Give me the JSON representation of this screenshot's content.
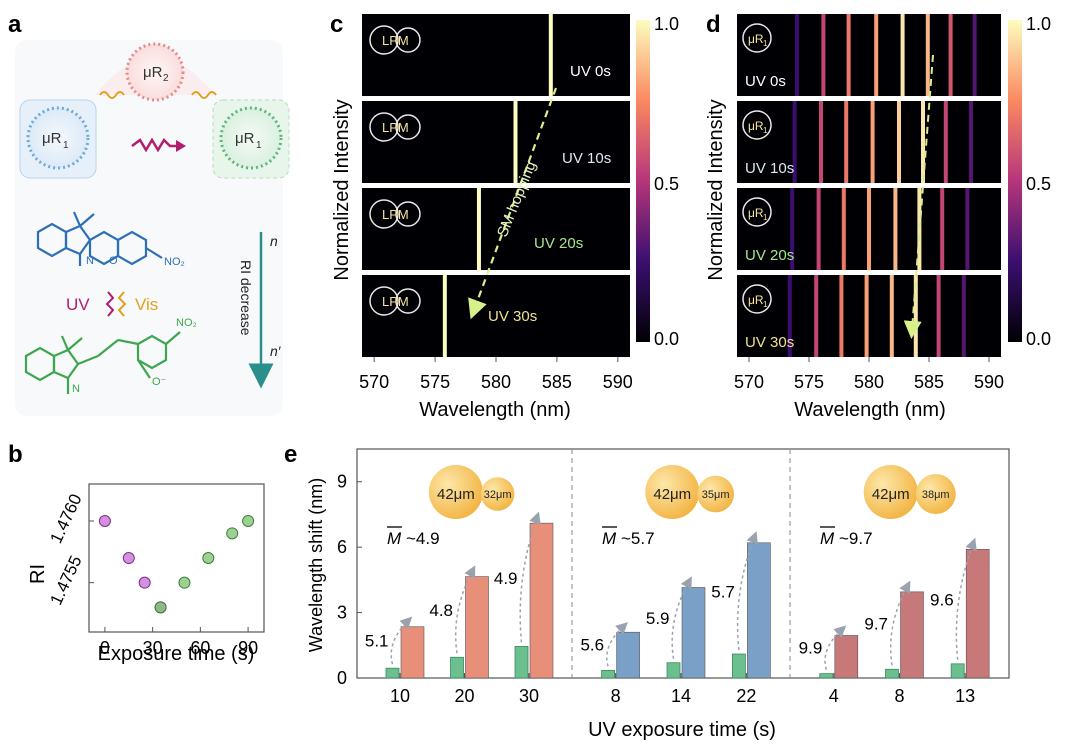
{
  "panels": {
    "a": {
      "letter": "a",
      "resonator_main": "μR",
      "resonator_main_sub": "1",
      "resonator_aux": "μR",
      "resonator_aux_sub": "2",
      "uv_label": "UV",
      "vis_label": "Vis",
      "ri_decrease_label": "RI decrease",
      "n_label": "n",
      "n_prime_label": "n′",
      "nitro_top": "NO₂",
      "nitro_bottom": "NO₂",
      "atom_N": "N",
      "atom_O": "O",
      "atom_N_plus": "N",
      "atom_O_minus": "O⁻",
      "colors": {
        "blue_resonator": "#6fa8d8",
        "red_resonator": "#e88a8a",
        "green_resonator": "#5cb57a",
        "uv": "#b01e6e",
        "vis": "#e0a21e",
        "ri_arrow": "#2a8f8a"
      }
    },
    "b": {
      "letter": "b",
      "ylabel": "RI",
      "xlabel": "Exposure time (s)",
      "xticks": [
        "0",
        "30",
        "60",
        "90"
      ],
      "yticks": [
        "1.4755",
        "1.4760"
      ]
    },
    "c": {
      "letter": "c",
      "ylabel": "Normalized Intensity",
      "xlabel": "Wavelength (nm)",
      "xticks": [
        "570",
        "575",
        "580",
        "585",
        "590"
      ],
      "cbar_ticks": [
        "1.0",
        "0.5",
        "0.0"
      ],
      "strips": [
        {
          "badge": "LPM",
          "uv_label": "UV 0s"
        },
        {
          "badge": "LPM",
          "uv_label": "UV 10s"
        },
        {
          "badge": "LPM",
          "uv_label": "UV 20s"
        },
        {
          "badge": "LPM",
          "uv_label": "UV 30s"
        }
      ],
      "arrow_label": "SM hopping"
    },
    "d": {
      "letter": "d",
      "ylabel": "Normalized Intensity",
      "xlabel": "Wavelength (nm)",
      "xticks": [
        "570",
        "575",
        "580",
        "585",
        "590"
      ],
      "cbar_ticks": [
        "1.0",
        "0.5",
        "0.0"
      ],
      "strips": [
        {
          "badge": "μR",
          "badge_sub": "1",
          "uv_label": "UV 0s"
        },
        {
          "badge": "μR",
          "badge_sub": "1",
          "uv_label": "UV 10s"
        },
        {
          "badge": "μR",
          "badge_sub": "1",
          "uv_label": "UV 20s"
        },
        {
          "badge": "μR",
          "badge_sub": "1",
          "uv_label": "UV 30s"
        }
      ]
    },
    "e": {
      "letter": "e",
      "ylabel": "Wavelength shift (nm)",
      "xlabel": "UV exposure time (s)",
      "yticks": [
        "0",
        "3",
        "6",
        "9"
      ],
      "groups": [
        {
          "big": "42μm",
          "small": "32μm",
          "m_bar": "M",
          "m_value": "~4.9",
          "xticks": [
            "10",
            "20",
            "30"
          ],
          "ratios": [
            "5.1",
            "4.8",
            "4.9"
          ]
        },
        {
          "big": "42μm",
          "small": "35μm",
          "m_bar": "M",
          "m_value": "~5.7",
          "xticks": [
            "8",
            "14",
            "22"
          ],
          "ratios": [
            "5.6",
            "5.9",
            "5.7"
          ]
        },
        {
          "big": "42μm",
          "small": "38μm",
          "m_bar": "M",
          "m_value": "~9.7",
          "xticks": [
            "4",
            "8",
            "13"
          ],
          "ratios": [
            "9.9",
            "9.7",
            "9.6"
          ]
        }
      ]
    }
  },
  "chart_data": [
    {
      "panel": "b",
      "type": "scatter",
      "xlabel": "Exposure time (s)",
      "ylabel": "RI",
      "xlim": [
        -10,
        100
      ],
      "ylim": [
        1.4751,
        1.4763
      ],
      "series": [
        {
          "color": "#c76ad6",
          "x": [
            0,
            15,
            25,
            35
          ],
          "y": [
            1.476,
            1.4757,
            1.4755,
            1.4753
          ]
        },
        {
          "color": "#7cc26f",
          "x": [
            35,
            50,
            65,
            80,
            90
          ],
          "y": [
            1.4753,
            1.4755,
            1.4757,
            1.4759,
            1.476
          ]
        }
      ]
    },
    {
      "panel": "c",
      "type": "heatmap",
      "xlabel": "Wavelength (nm)",
      "ylabel": "Normalized Intensity",
      "xlim": [
        569,
        591
      ],
      "color_range": [
        0,
        1
      ],
      "rows": [
        {
          "label": "UV 0s",
          "peaks": [
            [
              584.5,
              1.0
            ]
          ]
        },
        {
          "label": "UV 10s",
          "peaks": [
            [
              581.6,
              1.0
            ]
          ]
        },
        {
          "label": "UV 20s",
          "peaks": [
            [
              578.6,
              1.0
            ]
          ]
        },
        {
          "label": "UV 30s",
          "peaks": [
            [
              575.8,
              1.0
            ]
          ]
        }
      ]
    },
    {
      "panel": "d",
      "type": "heatmap",
      "xlabel": "Wavelength (nm)",
      "ylabel": "Normalized Intensity",
      "xlim": [
        569,
        591
      ],
      "color_range": [
        0,
        1
      ],
      "rows": [
        {
          "label": "UV 0s",
          "peaks": [
            [
              574,
              0.25
            ],
            [
              576.2,
              0.55
            ],
            [
              578.3,
              0.7
            ],
            [
              580.6,
              0.8
            ],
            [
              582.8,
              0.95
            ],
            [
              584.9,
              0.85
            ],
            [
              586.8,
              0.6
            ],
            [
              588.8,
              0.3
            ]
          ]
        },
        {
          "label": "UV 10s",
          "peaks": [
            [
              573.8,
              0.25
            ],
            [
              576,
              0.55
            ],
            [
              578.1,
              0.7
            ],
            [
              580.3,
              0.8
            ],
            [
              582.5,
              0.9
            ],
            [
              584.5,
              0.95
            ],
            [
              586.4,
              0.55
            ],
            [
              588.5,
              0.3
            ]
          ]
        },
        {
          "label": "UV 20s",
          "peaks": [
            [
              573.6,
              0.25
            ],
            [
              575.8,
              0.55
            ],
            [
              577.9,
              0.7
            ],
            [
              580,
              0.8
            ],
            [
              582.2,
              0.85
            ],
            [
              584.2,
              0.95
            ],
            [
              586.1,
              0.55
            ],
            [
              588.2,
              0.3
            ]
          ]
        },
        {
          "label": "UV 30s",
          "peaks": [
            [
              573.4,
              0.25
            ],
            [
              575.6,
              0.55
            ],
            [
              577.7,
              0.7
            ],
            [
              579.8,
              0.8
            ],
            [
              581.9,
              0.85
            ],
            [
              583.9,
              0.95
            ],
            [
              585.8,
              0.55
            ],
            [
              587.9,
              0.3
            ]
          ]
        }
      ]
    },
    {
      "panel": "e",
      "type": "bar",
      "xlabel": "UV exposure time (s)",
      "ylabel": "Wavelength shift (nm)",
      "ylim": [
        0,
        10.5
      ],
      "groups": [
        {
          "categories": [
            "10",
            "20",
            "30"
          ],
          "green": [
            0.45,
            0.95,
            1.45
          ],
          "colored": [
            2.35,
            4.65,
            7.1
          ],
          "color": "#e88f7a"
        },
        {
          "categories": [
            "8",
            "14",
            "22"
          ],
          "green": [
            0.35,
            0.7,
            1.1
          ],
          "colored": [
            2.1,
            4.15,
            6.2
          ],
          "color": "#7aa0c8"
        },
        {
          "categories": [
            "4",
            "8",
            "13"
          ],
          "green": [
            0.2,
            0.4,
            0.65
          ],
          "colored": [
            1.95,
            3.95,
            5.9
          ],
          "color": "#c77878"
        }
      ]
    }
  ]
}
